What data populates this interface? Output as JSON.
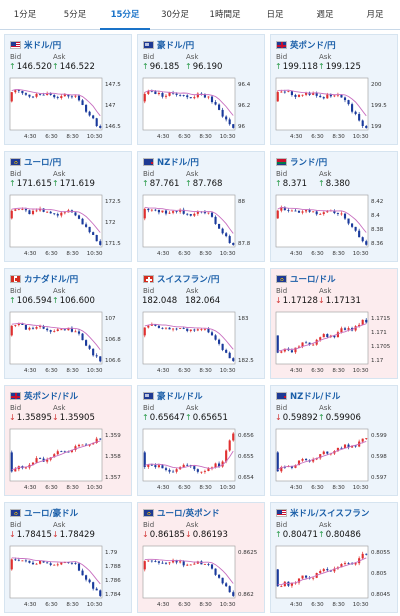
{
  "tabs": [
    {
      "label": "1分足",
      "active": false
    },
    {
      "label": "5分足",
      "active": false
    },
    {
      "label": "15分足",
      "active": true
    },
    {
      "label": "30分足",
      "active": false
    },
    {
      "label": "1時間足",
      "active": false
    },
    {
      "label": "日足",
      "active": false
    },
    {
      "label": "週足",
      "active": false
    },
    {
      "label": "月足",
      "active": false
    }
  ],
  "colors": {
    "up_bg": "#edf4fb",
    "down_bg": "#fcecee",
    "title": "#1a5ea8",
    "candle_up": "#e03030",
    "candle_down": "#1a3a9c",
    "ma": "#c86fc0",
    "arrow_up": "#2a9b4a",
    "arrow_down": "#d23838",
    "active_tab": "#1a73c8"
  },
  "labels": {
    "bid": "Bid",
    "ask": "Ask"
  },
  "cards": [
    {
      "title": "米ドル/円",
      "flag": "us",
      "dir": "up",
      "bid": "146.520",
      "ask": "146.522",
      "bid_dir": "up",
      "ask_dir": "up",
      "x_labels": [
        "4:30",
        "6:30",
        "8:30",
        "10:30"
      ],
      "y_labels": [
        "147.5",
        "147",
        "146.5"
      ],
      "shape": "fall"
    },
    {
      "title": "豪ドル/円",
      "flag": "au",
      "dir": "up",
      "bid": "96.185",
      "ask": "96.190",
      "bid_dir": "up",
      "ask_dir": "up",
      "x_labels": [
        "4:30",
        "6:30",
        "8:30",
        "10:30"
      ],
      "y_labels": [
        "96.4",
        "96.2",
        "96"
      ],
      "shape": "fall"
    },
    {
      "title": "英ポンド/円",
      "flag": "uk",
      "dir": "up",
      "bid": "199.118",
      "ask": "199.125",
      "bid_dir": "up",
      "ask_dir": "up",
      "x_labels": [
        "4:30",
        "6:30",
        "8:30",
        "10:30"
      ],
      "y_labels": [
        "200",
        "199.5",
        "199"
      ],
      "shape": "fall"
    },
    {
      "title": "ユーロ/円",
      "flag": "eu",
      "dir": "up",
      "bid": "171.615",
      "ask": "171.619",
      "bid_dir": "up",
      "ask_dir": "up",
      "x_labels": [
        "4:30",
        "6:30",
        "8:30",
        "10:30"
      ],
      "y_labels": [
        "172.5",
        "172",
        "171.5"
      ],
      "shape": "fall"
    },
    {
      "title": "NZドル/円",
      "flag": "nz",
      "dir": "up",
      "bid": "87.761",
      "ask": "87.768",
      "bid_dir": "up",
      "ask_dir": "up",
      "x_labels": [
        "4:30",
        "6:30",
        "8:30",
        "10:30"
      ],
      "y_labels": [
        "88",
        "87.8"
      ],
      "shape": "fall"
    },
    {
      "title": "ランド/円",
      "flag": "za",
      "dir": "up",
      "bid": "8.371",
      "ask": "8.380",
      "bid_dir": "up",
      "ask_dir": "up",
      "x_labels": [
        "4:30",
        "6:30",
        "8:30",
        "10:30"
      ],
      "y_labels": [
        "8.42",
        "8.4",
        "8.38",
        "8.36"
      ],
      "shape": "fall"
    },
    {
      "title": "カナダドル/円",
      "flag": "ca",
      "dir": "up",
      "bid": "106.594",
      "ask": "106.600",
      "bid_dir": "up",
      "ask_dir": "up",
      "x_labels": [
        "4:30",
        "6:30",
        "8:30",
        "10:30"
      ],
      "y_labels": [
        "107",
        "106.8",
        "106.6"
      ],
      "shape": "fall"
    },
    {
      "title": "スイスフラン/円",
      "flag": "ch",
      "dir": "up",
      "bid": "182.048",
      "ask": "182.064",
      "bid_dir": "none",
      "ask_dir": "none",
      "x_labels": [
        "4:30",
        "6:30",
        "8:30",
        "10:30"
      ],
      "y_labels": [
        "183",
        "182.5"
      ],
      "shape": "fall"
    },
    {
      "title": "ユーロ/ドル",
      "flag": "eu",
      "dir": "down",
      "bid": "1.17128",
      "ask": "1.17131",
      "bid_dir": "down",
      "ask_dir": "down",
      "x_labels": [
        "4:30",
        "6:30",
        "8:30",
        "10:30"
      ],
      "y_labels": [
        "1.1715",
        "1.171",
        "1.1705",
        "1.17"
      ],
      "shape": "rise"
    },
    {
      "title": "英ポンド/ドル",
      "flag": "uk",
      "dir": "down",
      "bid": "1.35895",
      "ask": "1.35905",
      "bid_dir": "down",
      "ask_dir": "down",
      "x_labels": [
        "4:30",
        "6:30",
        "8:30",
        "10:30"
      ],
      "y_labels": [
        "1.359",
        "1.358",
        "1.357"
      ],
      "shape": "rise"
    },
    {
      "title": "豪ドル/ドル",
      "flag": "au",
      "dir": "up",
      "bid": "0.65647",
      "ask": "0.65651",
      "bid_dir": "up",
      "ask_dir": "up",
      "x_labels": [
        "4:30",
        "6:30",
        "8:30",
        "10:30"
      ],
      "y_labels": [
        "0.656",
        "0.655",
        "0.654"
      ],
      "shape": "spike"
    },
    {
      "title": "NZドル/ドル",
      "flag": "nz",
      "dir": "up",
      "bid": "0.59892",
      "ask": "0.59906",
      "bid_dir": "down",
      "ask_dir": "up",
      "x_labels": [
        "4:30",
        "6:30",
        "8:30",
        "10:30"
      ],
      "y_labels": [
        "0.599",
        "0.598",
        "0.597"
      ],
      "shape": "rise"
    },
    {
      "title": "ユーロ/豪ドル",
      "flag": "eu",
      "dir": "up",
      "bid": "1.78415",
      "ask": "1.78429",
      "bid_dir": "down",
      "ask_dir": "down",
      "x_labels": [
        "4:30",
        "6:30",
        "8:30",
        "10:30"
      ],
      "y_labels": [
        "1.79",
        "1.788",
        "1.786",
        "1.784"
      ],
      "shape": "fall"
    },
    {
      "title": "ユーロ/英ポンド",
      "flag": "eu",
      "dir": "down",
      "bid": "0.86185",
      "ask": "0.86193",
      "bid_dir": "down",
      "ask_dir": "down",
      "x_labels": [
        "4:30",
        "6:30",
        "8:30",
        "10:30"
      ],
      "y_labels": [
        "0.8625",
        "0.862"
      ],
      "shape": "fall"
    },
    {
      "title": "米ドル/スイスフラン",
      "flag": "us",
      "dir": "up",
      "bid": "0.80471",
      "ask": "0.80486",
      "bid_dir": "up",
      "ask_dir": "up",
      "x_labels": [
        "4:30",
        "6:30",
        "8:30",
        "10:30"
      ],
      "y_labels": [
        "0.8055",
        "0.805",
        "0.8045"
      ],
      "shape": "rise"
    }
  ]
}
